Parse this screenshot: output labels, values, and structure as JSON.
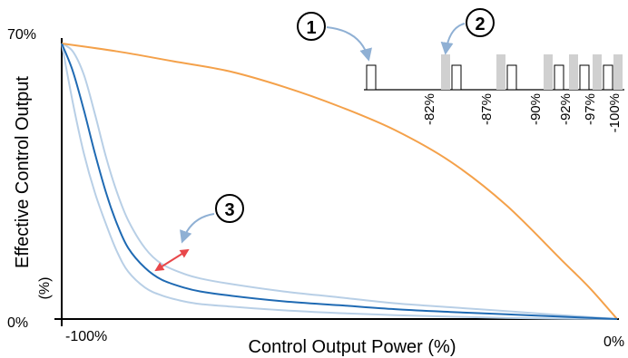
{
  "chart_data": {
    "type": "line",
    "title": "",
    "xlabel": "Control Output Power (%)",
    "ylabel": "Effective Control Output",
    "ylabel_unit": "(%)",
    "x_tick_labels": [
      "-100%",
      "0%"
    ],
    "y_tick_labels": [
      "70%",
      "0%"
    ],
    "xlim": [
      -100,
      0
    ],
    "ylim": [
      0,
      70
    ],
    "series": [
      {
        "color": "#f4a14a",
        "x": [
          -100,
          -90,
          -80,
          -70,
          -60,
          -50,
          -40,
          -30,
          -20,
          -10,
          -5,
          0
        ],
        "y": [
          70,
          68,
          65.5,
          63,
          59,
          54,
          48,
          40,
          29,
          15,
          8,
          0
        ]
      },
      {
        "color": "#1f6ab3",
        "x": [
          -100,
          -98,
          -96,
          -94,
          -92,
          -90,
          -88,
          -85,
          -82,
          -78,
          -75,
          -70,
          -60,
          -50,
          -40,
          -30,
          -20,
          -10,
          0
        ],
        "y": [
          70,
          63,
          53,
          42,
          32,
          24,
          18,
          13,
          10,
          8,
          7,
          6,
          4.5,
          3.5,
          2.5,
          1.8,
          1.2,
          0.6,
          0
        ]
      },
      {
        "color": "#b8cfe6",
        "x": [
          -100,
          -98,
          -96,
          -94,
          -92,
          -90,
          -88,
          -85,
          -82,
          -78,
          -75,
          -70,
          -60,
          -50,
          -40,
          -30,
          -20,
          -10,
          0
        ],
        "y": [
          70,
          68,
          62,
          52,
          41,
          32,
          25,
          18,
          14,
          11.5,
          10.3,
          9,
          7,
          5.5,
          4,
          3,
          2,
          1,
          0
        ]
      },
      {
        "color": "#b8cfe6",
        "x": [
          -100,
          -98,
          -96,
          -94,
          -92,
          -90,
          -88,
          -85,
          -82,
          -78,
          -75,
          -70,
          -60,
          -50,
          -40,
          -30,
          -20,
          -10,
          0
        ],
        "y": [
          70,
          55,
          42,
          32,
          24,
          17,
          12,
          8,
          6,
          4.5,
          3.8,
          3.2,
          2.2,
          1.5,
          1,
          0.6,
          0.3,
          0.1,
          0
        ]
      }
    ],
    "pulse_inset": {
      "markers": [
        "-82%",
        "-87%",
        "-90%",
        "-92%",
        "-97%",
        "-100%"
      ]
    },
    "callouts": [
      "1",
      "2",
      "3"
    ],
    "colors": {
      "axis": "#000000",
      "callout_arrow": "#8fb0d4",
      "spread_arrow": "#e8474a",
      "pulse_gray": "#d0d0d0"
    }
  }
}
